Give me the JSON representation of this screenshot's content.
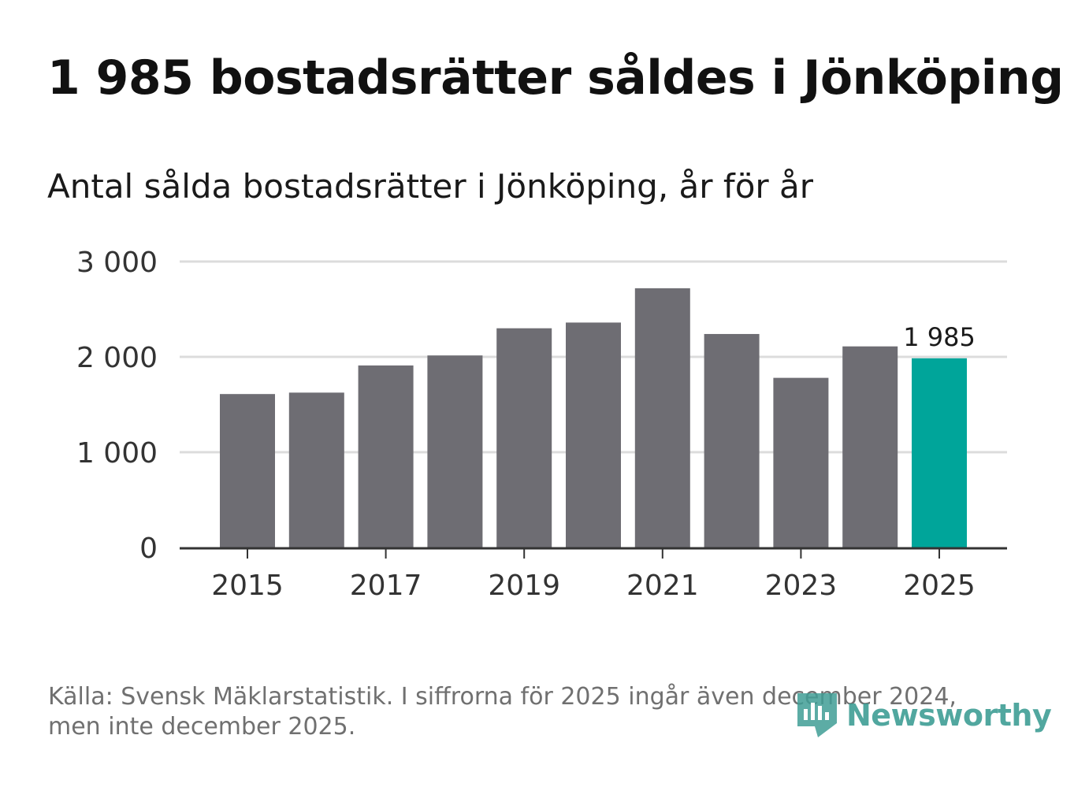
{
  "title": "1 985 bostadsrätter såldes i Jönköping",
  "subtitle": "Antal sålda bostadsrätter i Jönköping, år för år",
  "footnote": "Källa: Svensk Mäklarstatistik. I siffrorna för 2025 ingår även december 2024, men inte december 2025.",
  "logo_text": "Newsworthy",
  "colors": {
    "bar": "#6e6d73",
    "highlight": "#00a59a",
    "grid": "#dcdcdc",
    "axis": "#333333",
    "logo": "#3f9e95"
  },
  "chart_data": {
    "type": "bar",
    "title": "Antal sålda bostadsrätter i Jönköping, år för år",
    "xlabel": "",
    "ylabel": "",
    "categories": [
      "2015",
      "2016",
      "2017",
      "2018",
      "2019",
      "2020",
      "2021",
      "2022",
      "2023",
      "2024",
      "2025"
    ],
    "values": [
      1610,
      1625,
      1910,
      2015,
      2300,
      2360,
      2720,
      2240,
      1780,
      2110,
      1985
    ],
    "ylim": [
      0,
      3000
    ],
    "yticks": [
      0,
      1000,
      2000,
      3000
    ],
    "ytick_labels": [
      "0",
      "1 000",
      "2 000",
      "3 000"
    ],
    "xtick_labels": [
      "2015",
      "2017",
      "2019",
      "2021",
      "2023",
      "2025"
    ],
    "highlight_category": "2025",
    "data_label": "1 985",
    "grid": true
  }
}
